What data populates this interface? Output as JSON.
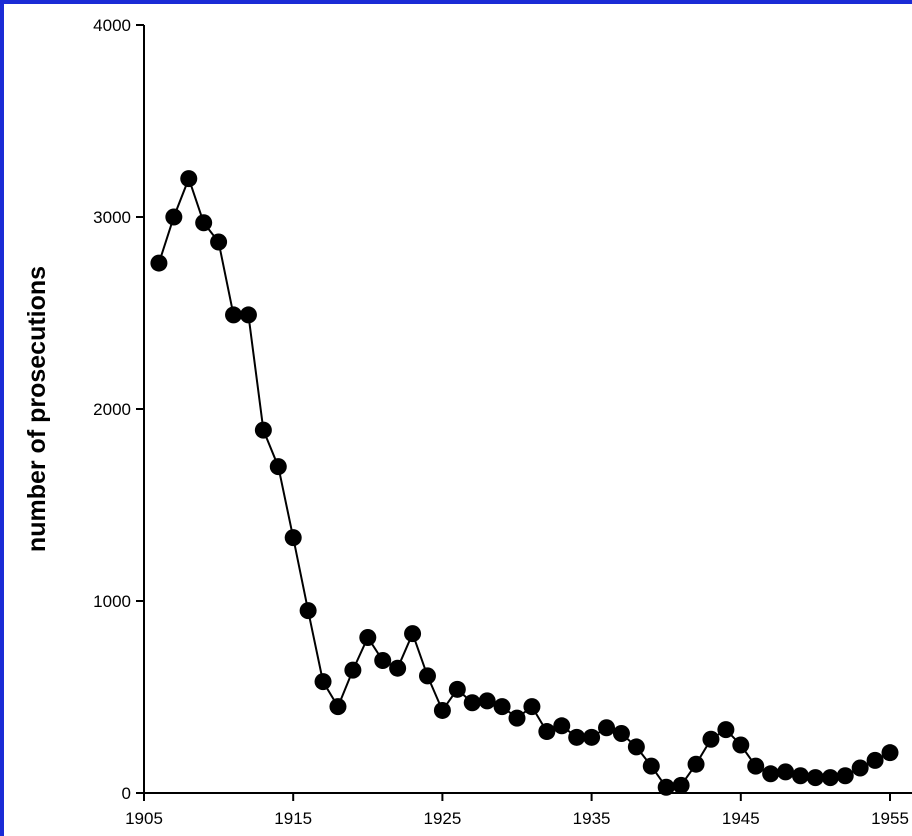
{
  "chart_data": {
    "type": "line",
    "title": "",
    "xlabel": "",
    "ylabel": "number of prosecutions",
    "xlim": [
      1905,
      1955
    ],
    "ylim": [
      0,
      4000
    ],
    "x_ticks": [
      "1905",
      "1915",
      "1925",
      "1935",
      "1945",
      "1955"
    ],
    "y_ticks": [
      "0",
      "1000",
      "2000",
      "3000",
      "4000"
    ],
    "grid": false,
    "legend": "none",
    "colors": {
      "line": "#000000",
      "marker": "#000000",
      "frame": "#1a2bd6"
    },
    "series": [
      {
        "marker": "circle",
        "x": [
          1906,
          1907,
          1908,
          1909,
          1910,
          1911,
          1912,
          1913,
          1914,
          1915,
          1916,
          1917,
          1918,
          1919,
          1920,
          1921,
          1922,
          1923,
          1924,
          1925,
          1926,
          1927,
          1928,
          1929,
          1930,
          1931,
          1932,
          1933,
          1934,
          1935,
          1936,
          1937,
          1938,
          1939,
          1940,
          1941,
          1942,
          1943,
          1944,
          1945,
          1946,
          1947,
          1948,
          1949,
          1950,
          1951,
          1952,
          1953,
          1954,
          1955
        ],
        "y": [
          2760,
          3000,
          3200,
          2970,
          2870,
          2490,
          2490,
          1890,
          1700,
          1330,
          950,
          580,
          450,
          640,
          810,
          690,
          650,
          830,
          610,
          430,
          540,
          470,
          480,
          450,
          390,
          450,
          320,
          350,
          290,
          290,
          340,
          310,
          240,
          140,
          30,
          40,
          150,
          280,
          330,
          250,
          140,
          100,
          110,
          90,
          80,
          80,
          90,
          130,
          170,
          210
        ]
      }
    ]
  }
}
